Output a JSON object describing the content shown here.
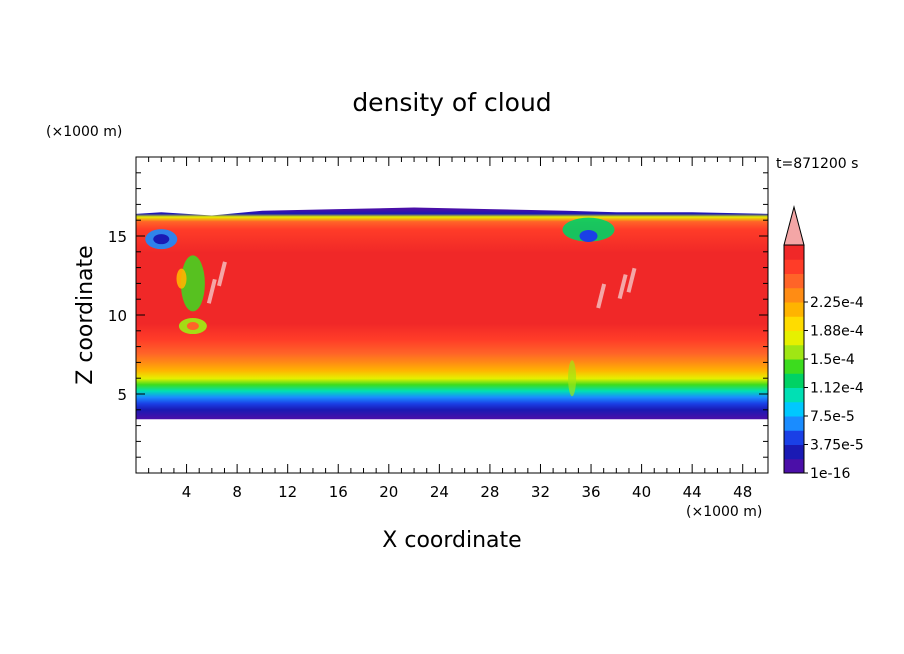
{
  "chart_data": {
    "type": "heatmap",
    "title": "density of cloud",
    "xlabel": "X coordinate",
    "ylabel": "Z coordinate",
    "x_unit": "(×1000 m)",
    "y_unit": "(×1000 m)",
    "time_label": "t=871200 s",
    "xlim": [
      0,
      50
    ],
    "ylim": [
      0,
      20
    ],
    "xticks": [
      4,
      8,
      12,
      16,
      20,
      24,
      28,
      32,
      36,
      40,
      44,
      48
    ],
    "yticks": [
      5,
      10,
      15
    ],
    "colorbar": {
      "labels": [
        "1e-16",
        "3.75e-5",
        "7.5e-5",
        "1.12e-4",
        "1.5e-4",
        "1.88e-4",
        "2.25e-4"
      ],
      "levels": [
        0,
        3.75e-05,
        7.5e-05,
        0.000112,
        0.00015,
        0.000188,
        0.000225
      ],
      "colors": [
        "#4b0fa8",
        "#1a1ab4",
        "#1a40e6",
        "#1a8cff",
        "#00c8ff",
        "#00e0b4",
        "#00d264",
        "#3cdc1e",
        "#a0e614",
        "#e6f000",
        "#ffdc00",
        "#ffb400",
        "#ff8c14",
        "#ff6428",
        "#ff3c28",
        "#f02828"
      ],
      "extend_color": "#f4a6a6"
    },
    "cloud_layer": {
      "base_z": 3.4,
      "top_z_min": 16.3,
      "top_z_max": 16.8,
      "core_z": [
        8,
        15
      ]
    }
  }
}
